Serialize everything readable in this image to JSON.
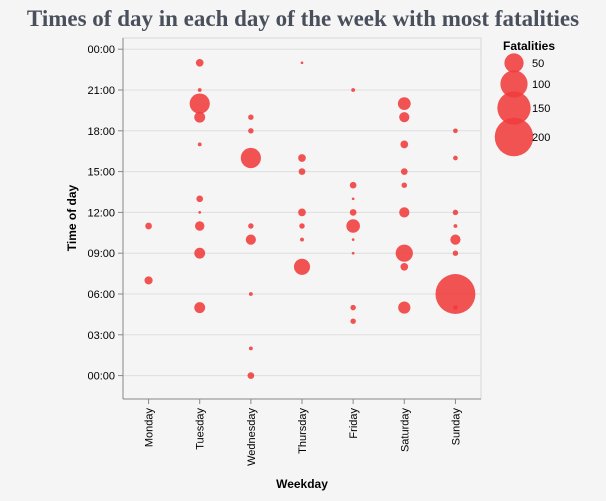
{
  "chart_data": {
    "type": "scatter",
    "title": "Times of day in each day of the week with most fatalities",
    "xlabel": "Weekday",
    "ylabel": "Time of day",
    "categories": [
      "Monday",
      "Tuesday",
      "Wednesday",
      "Thursday",
      "Friday",
      "Saturday",
      "Sunday"
    ],
    "y_ticks": [
      "00:00",
      "21:00",
      "18:00",
      "15:00",
      "12:00",
      "09:00",
      "06:00",
      "03:00",
      "00:00"
    ],
    "y_domain_hours": [
      -1.8,
      26.5
    ],
    "color": "#f03b3b",
    "size_legend": {
      "title": "Fatalities",
      "entries": [
        {
          "label": "50",
          "value": 50
        },
        {
          "label": "100",
          "value": 100
        },
        {
          "label": "150",
          "value": 150
        },
        {
          "label": "200",
          "value": 200
        }
      ]
    },
    "points": [
      {
        "day": "Monday",
        "hour": 11,
        "fatalities": 6
      },
      {
        "day": "Monday",
        "hour": 7,
        "fatalities": 9
      },
      {
        "day": "Tuesday",
        "hour": 23,
        "fatalities": 8
      },
      {
        "day": "Tuesday",
        "hour": 21,
        "fatalities": 2
      },
      {
        "day": "Tuesday",
        "hour": 20,
        "fatalities": 55
      },
      {
        "day": "Tuesday",
        "hour": 19,
        "fatalities": 16
      },
      {
        "day": "Tuesday",
        "hour": 17,
        "fatalities": 2
      },
      {
        "day": "Tuesday",
        "hour": 13,
        "fatalities": 6
      },
      {
        "day": "Tuesday",
        "hour": 12,
        "fatalities": 1
      },
      {
        "day": "Tuesday",
        "hour": 11,
        "fatalities": 12
      },
      {
        "day": "Tuesday",
        "hour": 9,
        "fatalities": 16
      },
      {
        "day": "Tuesday",
        "hour": 5,
        "fatalities": 16
      },
      {
        "day": "Wednesday",
        "hour": 19,
        "fatalities": 4
      },
      {
        "day": "Wednesday",
        "hour": 18,
        "fatalities": 4
      },
      {
        "day": "Wednesday",
        "hour": 16,
        "fatalities": 55
      },
      {
        "day": "Wednesday",
        "hour": 11,
        "fatalities": 4
      },
      {
        "day": "Wednesday",
        "hour": 10,
        "fatalities": 14
      },
      {
        "day": "Wednesday",
        "hour": 6,
        "fatalities": 2
      },
      {
        "day": "Wednesday",
        "hour": 2,
        "fatalities": 2
      },
      {
        "day": "Wednesday",
        "hour": 0,
        "fatalities": 6
      },
      {
        "day": "Thursday",
        "hour": 23,
        "fatalities": 1
      },
      {
        "day": "Thursday",
        "hour": 16,
        "fatalities": 8
      },
      {
        "day": "Thursday",
        "hour": 15,
        "fatalities": 6
      },
      {
        "day": "Thursday",
        "hour": 12,
        "fatalities": 8
      },
      {
        "day": "Thursday",
        "hour": 11,
        "fatalities": 4
      },
      {
        "day": "Thursday",
        "hour": 10,
        "fatalities": 2
      },
      {
        "day": "Thursday",
        "hour": 8,
        "fatalities": 35
      },
      {
        "day": "Friday",
        "hour": 21,
        "fatalities": 2
      },
      {
        "day": "Friday",
        "hour": 14,
        "fatalities": 6
      },
      {
        "day": "Friday",
        "hour": 13,
        "fatalities": 1
      },
      {
        "day": "Friday",
        "hour": 12,
        "fatalities": 6
      },
      {
        "day": "Friday",
        "hour": 11,
        "fatalities": 25
      },
      {
        "day": "Friday",
        "hour": 10,
        "fatalities": 1
      },
      {
        "day": "Friday",
        "hour": 9,
        "fatalities": 1
      },
      {
        "day": "Friday",
        "hour": 5,
        "fatalities": 4
      },
      {
        "day": "Friday",
        "hour": 4,
        "fatalities": 4
      },
      {
        "day": "Saturday",
        "hour": 20,
        "fatalities": 22
      },
      {
        "day": "Saturday",
        "hour": 19,
        "fatalities": 14
      },
      {
        "day": "Saturday",
        "hour": 17,
        "fatalities": 8
      },
      {
        "day": "Saturday",
        "hour": 15,
        "fatalities": 6
      },
      {
        "day": "Saturday",
        "hour": 14,
        "fatalities": 4
      },
      {
        "day": "Saturday",
        "hour": 12,
        "fatalities": 14
      },
      {
        "day": "Saturday",
        "hour": 9,
        "fatalities": 40
      },
      {
        "day": "Saturday",
        "hour": 8,
        "fatalities": 8
      },
      {
        "day": "Saturday",
        "hour": 5,
        "fatalities": 20
      },
      {
        "day": "Sunday",
        "hour": 18,
        "fatalities": 3
      },
      {
        "day": "Sunday",
        "hour": 16,
        "fatalities": 3
      },
      {
        "day": "Sunday",
        "hour": 12,
        "fatalities": 4
      },
      {
        "day": "Sunday",
        "hour": 11,
        "fatalities": 2
      },
      {
        "day": "Sunday",
        "hour": 10,
        "fatalities": 14
      },
      {
        "day": "Sunday",
        "hour": 9,
        "fatalities": 4
      },
      {
        "day": "Sunday",
        "hour": 6,
        "fatalities": 215
      },
      {
        "day": "Sunday",
        "hour": 5,
        "fatalities": 3
      }
    ]
  }
}
